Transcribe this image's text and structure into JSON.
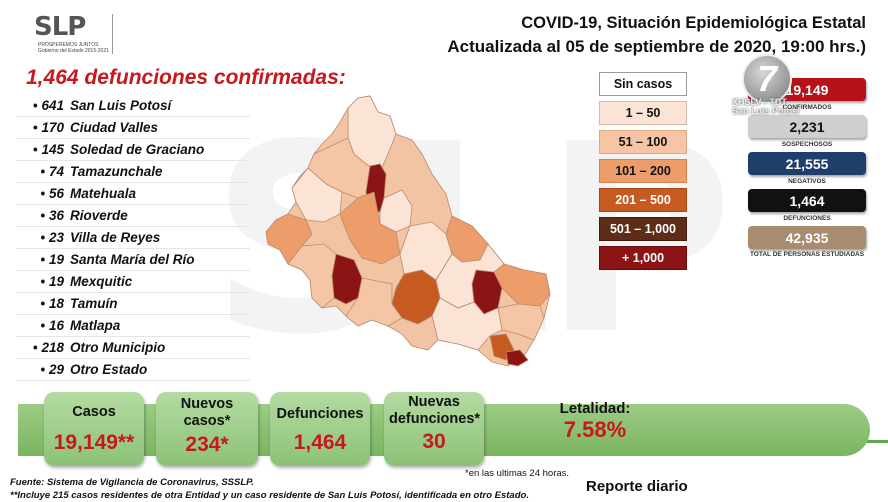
{
  "watermark": "SLP",
  "logo": {
    "mark": "SLP",
    "subtitle": "PROSPEREMOS JUNTOS",
    "subtitle2": "Gobierno del Estado 2015-2021"
  },
  "title": {
    "line1": "COVID-19, Situación Epidemiológica Estatal",
    "line2": "Actualizada al 05 de septiembre de 2020, 19:00 hrs.)"
  },
  "deaths_heading": "1,464 defunciones confirmadas:",
  "municipalities": [
    {
      "count": "641",
      "name": "San Luis Potosí"
    },
    {
      "count": "170",
      "name": "Ciudad Valles"
    },
    {
      "count": "145",
      "name": "Soledad de Graciano"
    },
    {
      "count": "74",
      "name": "Tamazunchale"
    },
    {
      "count": "56",
      "name": "Matehuala"
    },
    {
      "count": "36",
      "name": "Rioverde"
    },
    {
      "count": "23",
      "name": "Villa de Reyes"
    },
    {
      "count": "19",
      "name": "Santa María del Río"
    },
    {
      "count": "19",
      "name": "Mexquitic"
    },
    {
      "count": "18",
      "name": "Tamuín"
    },
    {
      "count": "16",
      "name": "Matlapa"
    },
    {
      "count": "218",
      "name": "Otro Municipio"
    },
    {
      "count": "29",
      "name": "Otro Estado"
    }
  ],
  "legend": [
    {
      "label": "Sin casos",
      "bg": "#ffffff",
      "fg": "#111111",
      "border": "#9a9a9a"
    },
    {
      "label": "1 – 50",
      "bg": "#fbe3d6",
      "fg": "#111111",
      "border": "#d9b9a5"
    },
    {
      "label": "51 – 100",
      "bg": "#f6c5a5",
      "fg": "#111111",
      "border": "#e0a781"
    },
    {
      "label": "101 – 200",
      "bg": "#ec9d6a",
      "fg": "#111111",
      "border": "#d3824e"
    },
    {
      "label": "201 – 500",
      "bg": "#c65a20",
      "fg": "#ffffff",
      "border": "#a84816"
    },
    {
      "label": "501 – 1,000",
      "bg": "#5e2d18",
      "fg": "#ffffff",
      "border": "#3f1d0e"
    },
    {
      "label": "+ 1,000",
      "bg": "#8b1414",
      "fg": "#ffffff",
      "border": "#6a0c0c"
    }
  ],
  "stats": [
    {
      "value": "19,149",
      "label": "CONFIRMADOS",
      "bg": "#b5121b",
      "fg": "#ffffff"
    },
    {
      "value": "2,231",
      "label": "SOSPECHOSOS",
      "bg": "#cfcfcf",
      "fg": "#111111"
    },
    {
      "value": "21,555",
      "label": "NEGATIVOS",
      "bg": "#1f3f6b",
      "fg": "#ffffff"
    },
    {
      "value": "1,464",
      "label": "DEFUNCIONES",
      "bg": "#111111",
      "fg": "#ffffff"
    },
    {
      "value": "42,935",
      "label": "TOTAL DE PERSONAS ESTUDIADAS",
      "bg": "#a98b6d",
      "fg": "#ffffff"
    }
  ],
  "channel": {
    "number": "7",
    "line1": "XHSLV - TDT",
    "line2": "San Luis Potosí"
  },
  "summary": [
    {
      "label": "Casos",
      "value": "19,149**"
    },
    {
      "label": "Nuevos casos*",
      "value": "234*"
    },
    {
      "label": "Defunciones",
      "value": "1,464"
    },
    {
      "label": "Nuevas defunciones*",
      "value": "30"
    },
    {
      "label": "Letalidad:",
      "value": "7.58%"
    }
  ],
  "footnote_24h": "*en las ultimas 24 horas.",
  "source_line1": "Fuente: Sistema de Vigilancia de Coronavirus, SSSLP.",
  "source_line2": "**Incluye 215 casos residentes de otra Entidad y un caso residente de San Luis Potosí, identificada en otro Estado.",
  "report": "Reporte diario",
  "colors": {
    "accent_red": "#c8171d",
    "banner_green": "#8cc277"
  }
}
